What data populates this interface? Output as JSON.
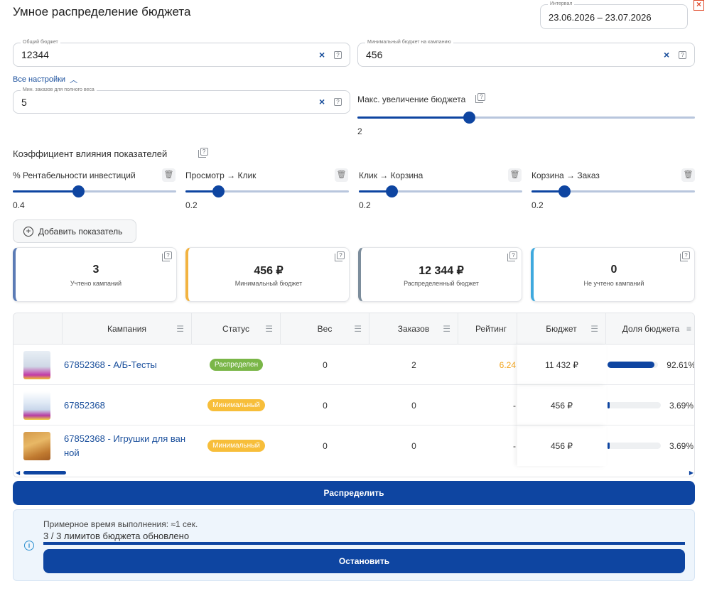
{
  "header": {
    "title": "Умное распределение бюджета",
    "close_icon": "close-icon"
  },
  "interval": {
    "label": "Интервал",
    "value": "23.06.2026 – 23.07.2026"
  },
  "total_budget": {
    "label": "Общий бюджет",
    "value": "12344"
  },
  "min_campaign_budget": {
    "label": "Минимальный бюджет на кампанию",
    "value": "456"
  },
  "settings_toggle": "Все настройки",
  "min_orders": {
    "label": "Мин. заказов для полного веса",
    "value": "5"
  },
  "max_increase": {
    "label": "Макс. увеличение бюджета",
    "value": "2",
    "fraction": 0.33
  },
  "coefficients": {
    "title": "Коэффициент влияния показателей",
    "items": [
      {
        "label": "% Рентабельности инвестиций",
        "value": "0.4",
        "fraction": 0.4
      },
      {
        "label": "Просмотр → Клик",
        "value": "0.2",
        "fraction": 0.2
      },
      {
        "label": "Клик → Корзина",
        "value": "0.2",
        "fraction": 0.2
      },
      {
        "label": "Корзина → Заказ",
        "value": "0.2",
        "fraction": 0.2
      }
    ]
  },
  "add_metric_label": "Добавить показатель",
  "cards": [
    {
      "value": "3",
      "label": "Учтено кампаний",
      "color": "#5b7bb5"
    },
    {
      "value": "456 ₽",
      "label": "Минимальный бюджет",
      "color": "#f2b340"
    },
    {
      "value": "12 344 ₽",
      "label": "Распределенный бюджет",
      "color": "#7c8d9c"
    },
    {
      "value": "0",
      "label": "Не учтено кампаний",
      "color": "#3fa9de"
    }
  ],
  "table": {
    "columns": [
      "Кампания",
      "Статус",
      "Вес",
      "Заказов",
      "Рейтинг",
      "Бюджет",
      "Доля бюджета"
    ],
    "rows": [
      {
        "campaign": "67852368 - А/Б-Тесты",
        "status": "Распределен",
        "status_color": "#7ab648",
        "weight": "0",
        "orders": "2",
        "rating": "6.24",
        "budget": "11 432 ₽",
        "share": "92.61%",
        "share_frac": 0.9261
      },
      {
        "campaign": "67852368",
        "status": "Минимальный",
        "status_color": "#f7be3a",
        "weight": "0",
        "orders": "0",
        "rating": "-",
        "budget": "456 ₽",
        "share": "3.69%",
        "share_frac": 0.0369
      },
      {
        "campaign": "67852368 - Игрушки для ванной",
        "status": "Минимальный",
        "status_color": "#f7be3a",
        "weight": "0",
        "orders": "0",
        "rating": "-",
        "budget": "456 ₽",
        "share": "3.69%",
        "share_frac": 0.0369
      }
    ]
  },
  "distribute_label": "Распределить",
  "progress": {
    "estimate": "Примерное время выполнения: ≈1 сек.",
    "status": "3 / 3 лимитов бюджета обновлено",
    "fraction": 1.0,
    "stop_label": "Остановить"
  }
}
